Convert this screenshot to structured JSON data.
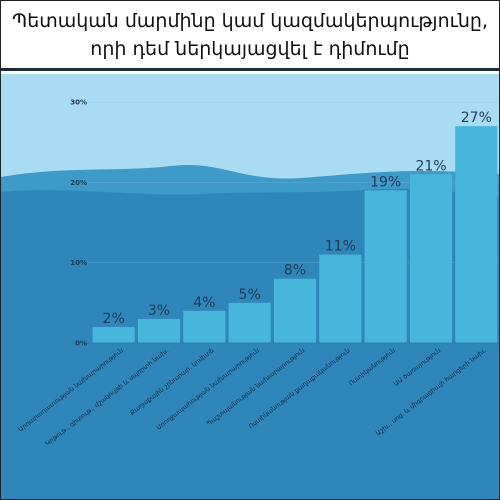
{
  "title": {
    "line1": "Պետական մարմինը կամ կազմակերպությունը,",
    "line2": "որի դեմ ներկայացվել է դիմումը"
  },
  "colors": {
    "sky": "#a9dcf3",
    "wave_back": "#3e9ac9",
    "wave_front": "#2f86ba",
    "bar": "#48b6dc",
    "bar_text": "#1f3b57",
    "border": "#1b2c3d"
  },
  "chart_data": {
    "type": "bar",
    "title": "Պետական մարմինը կամ կազմակերպությունը, որի դեմ ներկայացվել է դիմումը",
    "ylim": [
      0,
      30
    ],
    "yticks": [
      "0%",
      "10%",
      "20%",
      "30%"
    ],
    "grid": true,
    "categories": [
      "Արդարադատության նախարարություն",
      "Կրթութ., գիտութ., մշակույթի և սպորտի նախ.",
      "Քաղաքային շինարար. կոմիտե",
      "Առողջապահության նախարարություն",
      "Պաշտպանության նախարարություն",
      "Ոստիկանության քաղաքականություն",
      "Ոստիկանություն",
      "ԱԱ ծառայություն",
      "Աշխ., սոց. և միգրացիայի հարցերի նախ."
    ],
    "values": [
      2,
      3,
      4,
      5,
      8,
      11,
      19,
      21,
      27
    ],
    "value_labels": [
      "2%",
      "3%",
      "4%",
      "5%",
      "8%",
      "11%",
      "19%",
      "21%",
      "27%"
    ]
  }
}
